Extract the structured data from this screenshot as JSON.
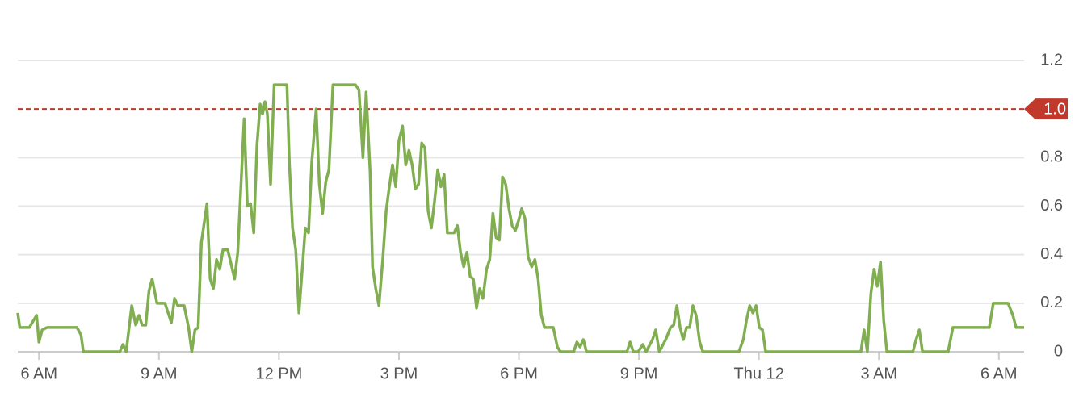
{
  "chart_data": {
    "type": "line",
    "x": [
      5.47,
      5.52,
      5.76,
      5.94,
      6.0,
      6.08,
      6.2,
      6.95,
      7.05,
      7.11,
      8.02,
      8.1,
      8.18,
      8.32,
      8.42,
      8.5,
      8.58,
      8.67,
      8.75,
      8.83,
      8.95,
      9.15,
      9.31,
      9.39,
      9.47,
      9.63,
      9.74,
      9.82,
      9.9,
      9.98,
      10.06,
      10.2,
      10.28,
      10.36,
      10.44,
      10.52,
      10.6,
      10.72,
      10.89,
      10.97,
      11.13,
      11.21,
      11.29,
      11.37,
      11.45,
      11.53,
      11.59,
      11.65,
      11.71,
      11.79,
      11.88,
      12.2,
      12.26,
      12.34,
      12.42,
      12.5,
      12.66,
      12.74,
      12.82,
      12.93,
      13.01,
      13.09,
      13.17,
      13.25,
      13.35,
      13.91,
      14.0,
      14.1,
      14.18,
      14.28,
      14.34,
      14.42,
      14.5,
      14.6,
      14.68,
      14.76,
      14.84,
      14.92,
      15.0,
      15.09,
      15.17,
      15.25,
      15.33,
      15.41,
      15.49,
      15.57,
      15.65,
      15.73,
      15.81,
      15.89,
      15.97,
      16.05,
      16.13,
      16.21,
      16.38,
      16.46,
      16.54,
      16.62,
      16.7,
      16.78,
      16.86,
      16.94,
      17.02,
      17.1,
      17.19,
      17.27,
      17.35,
      17.43,
      17.51,
      17.59,
      17.67,
      17.75,
      17.83,
      17.91,
      17.99,
      18.07,
      18.15,
      18.23,
      18.32,
      18.4,
      18.48,
      18.56,
      18.64,
      18.86,
      18.96,
      19.04,
      19.37,
      19.45,
      19.53,
      19.61,
      19.69,
      20.7,
      20.78,
      20.86,
      20.98,
      21.1,
      21.18,
      21.34,
      21.42,
      21.51,
      21.67,
      21.79,
      21.87,
      21.95,
      22.03,
      22.11,
      22.19,
      22.27,
      22.35,
      22.43,
      22.52,
      22.6,
      23.5,
      23.61,
      23.69,
      23.77,
      23.85,
      23.93,
      24.01,
      24.09,
      24.17,
      26.55,
      26.63,
      26.71,
      26.8,
      26.88,
      26.96,
      27.04,
      27.12,
      27.2,
      27.85,
      27.93,
      28.01,
      28.09,
      28.73,
      28.85,
      29.76,
      29.86,
      30.23,
      30.35,
      30.43,
      30.63
    ],
    "values": [
      0.16,
      0.1,
      0.1,
      0.15,
      0.04,
      0.09,
      0.1,
      0.1,
      0.07,
      0,
      0,
      0.03,
      0,
      0.19,
      0.11,
      0.15,
      0.11,
      0.11,
      0.25,
      0.3,
      0.2,
      0.2,
      0.12,
      0.22,
      0.19,
      0.19,
      0.1,
      0,
      0.09,
      0.1,
      0.45,
      0.61,
      0.3,
      0.26,
      0.38,
      0.34,
      0.42,
      0.42,
      0.3,
      0.41,
      0.96,
      0.6,
      0.61,
      0.49,
      0.85,
      1.02,
      0.98,
      1.03,
      0.98,
      0.69,
      1.1,
      1.1,
      0.78,
      0.51,
      0.42,
      0.16,
      0.51,
      0.49,
      0.78,
      1.0,
      0.69,
      0.57,
      0.7,
      0.75,
      1.1,
      1.1,
      1.08,
      0.8,
      1.07,
      0.74,
      0.35,
      0.26,
      0.19,
      0.39,
      0.58,
      0.68,
      0.77,
      0.68,
      0.87,
      0.93,
      0.77,
      0.83,
      0.77,
      0.67,
      0.69,
      0.86,
      0.84,
      0.58,
      0.51,
      0.62,
      0.75,
      0.68,
      0.73,
      0.49,
      0.49,
      0.52,
      0.41,
      0.35,
      0.41,
      0.31,
      0.3,
      0.18,
      0.26,
      0.22,
      0.34,
      0.38,
      0.57,
      0.47,
      0.46,
      0.72,
      0.69,
      0.59,
      0.52,
      0.5,
      0.54,
      0.59,
      0.55,
      0.39,
      0.35,
      0.38,
      0.3,
      0.15,
      0.1,
      0.1,
      0.02,
      0,
      0,
      0.04,
      0.02,
      0.05,
      0,
      0,
      0.04,
      0,
      0,
      0.03,
      0,
      0.05,
      0.09,
      0,
      0.05,
      0.1,
      0.11,
      0.19,
      0.1,
      0.05,
      0.1,
      0.1,
      0.19,
      0.15,
      0.04,
      0,
      0,
      0.05,
      0.13,
      0.19,
      0.16,
      0.19,
      0.1,
      0.09,
      0,
      0,
      0.09,
      0,
      0.24,
      0.34,
      0.27,
      0.37,
      0.13,
      0,
      0,
      0.05,
      0.09,
      0,
      0,
      0.1,
      0.1,
      0.2,
      0.2,
      0.15,
      0.1,
      0.1
    ],
    "color": "#82ae52",
    "xlim": [
      5.47,
      30.63
    ],
    "xticks": [
      {
        "value": 6,
        "label": "6 AM"
      },
      {
        "value": 9,
        "label": "9 AM"
      },
      {
        "value": 12,
        "label": "12 PM"
      },
      {
        "value": 15,
        "label": "3 PM"
      },
      {
        "value": 18,
        "label": "6 PM"
      },
      {
        "value": 21,
        "label": "9 PM"
      },
      {
        "value": 24,
        "label": "Thu 12"
      },
      {
        "value": 27,
        "label": "3 AM"
      },
      {
        "value": 30,
        "label": "6 AM"
      }
    ],
    "ylim": [
      0,
      1.2
    ],
    "yticks": [
      0,
      0.2,
      0.4,
      0.6,
      0.8,
      1.2
    ],
    "grid": true,
    "threshold": {
      "value": 1,
      "label": "1.0",
      "color": "#c0392b"
    }
  }
}
